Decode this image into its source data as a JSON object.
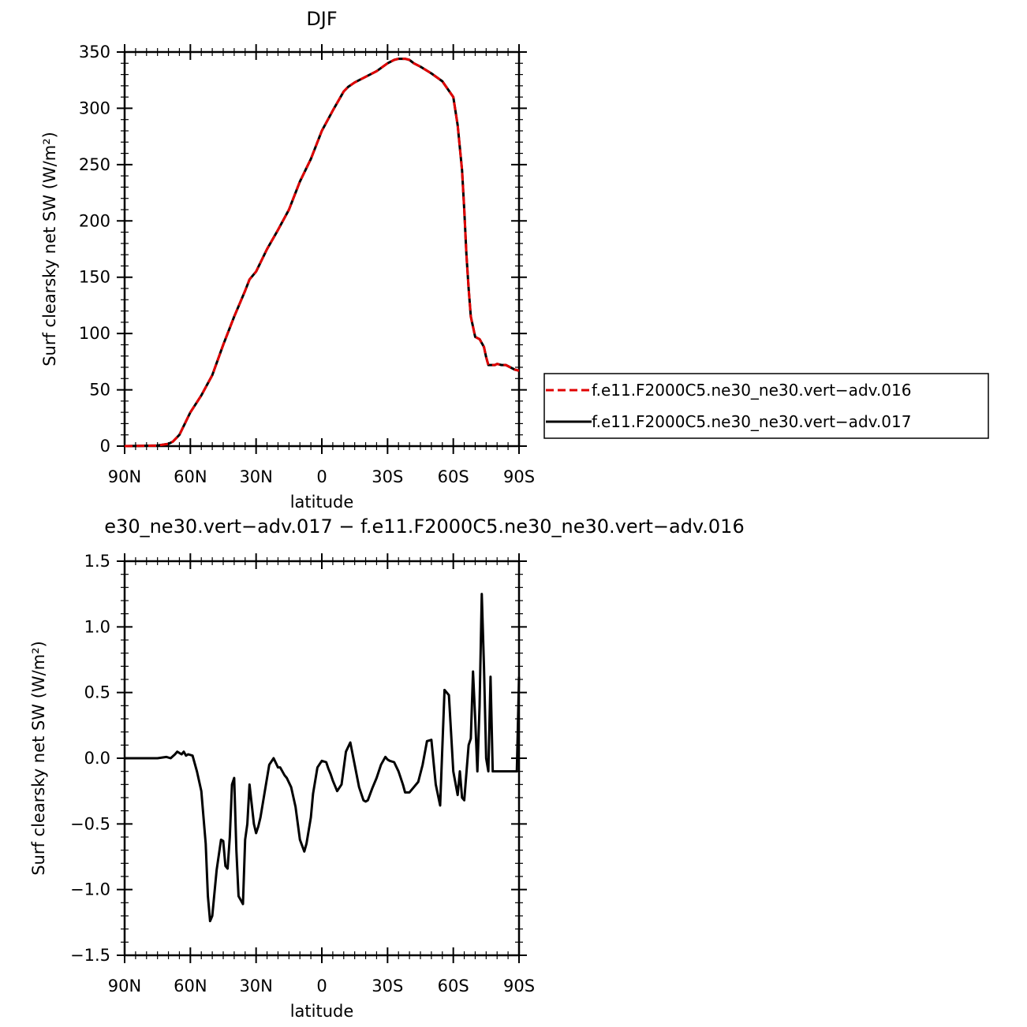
{
  "chart_data": [
    {
      "type": "line",
      "title": "DJF",
      "xlabel": "latitude",
      "ylabel": "Surf clearsky net SW (W/m²)",
      "xlim": [
        -90,
        90
      ],
      "ylim": [
        0,
        350
      ],
      "x_direction": "north-to-south",
      "xticks": [
        {
          "value": -90,
          "label": "90N"
        },
        {
          "value": -60,
          "label": "60N"
        },
        {
          "value": -30,
          "label": "30N"
        },
        {
          "value": 0,
          "label": "0"
        },
        {
          "value": 30,
          "label": "30S"
        },
        {
          "value": 60,
          "label": "60S"
        },
        {
          "value": 90,
          "label": "90S"
        }
      ],
      "yticks": [
        "0",
        "50",
        "100",
        "150",
        "200",
        "250",
        "300",
        "350"
      ],
      "legend_placement": "right",
      "series": [
        {
          "name": "f.e11.F2000C5.ne30_ne30.vert−adv.016",
          "color": "#e00000",
          "dash": "dashed",
          "x": [
            -90,
            -75,
            -70,
            -68,
            -65,
            -62,
            -60,
            -55,
            -50,
            -45,
            -40,
            -35,
            -33,
            -30,
            -25,
            -20,
            -15,
            -10,
            -5,
            0,
            5,
            10,
            12,
            15,
            20,
            25,
            30,
            33,
            35,
            38,
            40,
            42,
            45,
            50,
            55,
            60,
            62,
            64,
            65,
            66,
            67,
            68,
            70,
            72,
            74,
            75,
            76,
            78,
            79,
            80,
            82,
            84,
            86,
            88,
            90
          ],
          "y": [
            0,
            0.5,
            2,
            4,
            10,
            22,
            30,
            45,
            63,
            90,
            115,
            138,
            148,
            155,
            175,
            192,
            210,
            235,
            255,
            280,
            298,
            315,
            319,
            323,
            328,
            333,
            340,
            343,
            344,
            344,
            343,
            340,
            337,
            331,
            324,
            310,
            285,
            245,
            210,
            170,
            140,
            115,
            97,
            95,
            88,
            79,
            72,
            72,
            72,
            73,
            72,
            72,
            70,
            68,
            67
          ]
        },
        {
          "name": "f.e11.F2000C5.ne30_ne30.vert−adv.017",
          "color": "#000000",
          "dash": "solid",
          "x": [
            -90,
            -75,
            -70,
            -68,
            -65,
            -62,
            -60,
            -55,
            -50,
            -45,
            -40,
            -35,
            -33,
            -30,
            -25,
            -20,
            -15,
            -10,
            -5,
            0,
            5,
            10,
            12,
            15,
            20,
            25,
            30,
            33,
            35,
            38,
            40,
            42,
            45,
            50,
            55,
            60,
            62,
            64,
            65,
            66,
            67,
            68,
            70,
            72,
            74,
            75,
            76,
            78,
            79,
            80,
            82,
            84,
            86,
            88,
            90
          ],
          "y": [
            0,
            0.5,
            2,
            4,
            10,
            22,
            30,
            45,
            63,
            90,
            115,
            138,
            148,
            155,
            175,
            192,
            210,
            235,
            255,
            280,
            298,
            315,
            319,
            323,
            328,
            333,
            340,
            343,
            344,
            344,
            343,
            340,
            337,
            331,
            324,
            310,
            285,
            245,
            210,
            170,
            140,
            115,
            97,
            95,
            88,
            79,
            72,
            72,
            72,
            73,
            72,
            72,
            70,
            68,
            67
          ]
        }
      ]
    },
    {
      "type": "line",
      "title": "e30_ne30.vert−adv.017 − f.e11.F2000C5.ne30_ne30.vert−adv.016",
      "xlabel": "latitude",
      "ylabel": "Surf clearsky net SW (W/m²)",
      "xlim": [
        -90,
        90
      ],
      "ylim": [
        -1.5,
        1.5
      ],
      "x_direction": "north-to-south",
      "xticks": [
        {
          "value": -90,
          "label": "90N"
        },
        {
          "value": -60,
          "label": "60N"
        },
        {
          "value": -30,
          "label": "30N"
        },
        {
          "value": 0,
          "label": "0"
        },
        {
          "value": 30,
          "label": "30S"
        },
        {
          "value": 60,
          "label": "60S"
        },
        {
          "value": 90,
          "label": "90S"
        }
      ],
      "yticks": [
        "1.5",
        "1.0",
        "0.5",
        "0.0",
        "−0.5",
        "−1.0",
        "−1.5"
      ],
      "series": [
        {
          "color": "#000000",
          "dash": "solid",
          "x": [
            -90,
            -75,
            -71,
            -69,
            -67,
            -66,
            -64,
            -63,
            -62,
            -61,
            -59,
            -57,
            -55,
            -53,
            -52,
            -51,
            -50,
            -48,
            -46,
            -45,
            -44,
            -43,
            -42,
            -41,
            -40,
            -39,
            -38,
            -36,
            -35,
            -34,
            -33,
            -31,
            -30,
            -29,
            -28,
            -26,
            -24,
            -22,
            -20,
            -19,
            -17,
            -16,
            -14,
            -12,
            -10,
            -8,
            -7,
            -5,
            -4,
            -2,
            0,
            2,
            3,
            4,
            5,
            7,
            9,
            11,
            13,
            15,
            17,
            19,
            20,
            21,
            23,
            25,
            27,
            29,
            30,
            31,
            33,
            35,
            37,
            38,
            40,
            42,
            44,
            46,
            48,
            50,
            52,
            54,
            56,
            58,
            60,
            62,
            63,
            64,
            65,
            67,
            68,
            69,
            70,
            71,
            72,
            73,
            74,
            75,
            76,
            77,
            78,
            79,
            80,
            81,
            82,
            83,
            84,
            85,
            86,
            87,
            88,
            89,
            90
          ],
          "y": [
            0,
            0,
            0.01,
            0,
            0.03,
            0.05,
            0.03,
            0.05,
            0.02,
            0.03,
            0.02,
            -0.1,
            -0.25,
            -0.65,
            -1.05,
            -1.24,
            -1.2,
            -0.85,
            -0.62,
            -0.63,
            -0.82,
            -0.84,
            -0.6,
            -0.2,
            -0.15,
            -0.7,
            -1.05,
            -1.11,
            -0.62,
            -0.5,
            -0.2,
            -0.5,
            -0.57,
            -0.52,
            -0.45,
            -0.25,
            -0.05,
            0,
            -0.07,
            -0.07,
            -0.13,
            -0.15,
            -0.22,
            -0.37,
            -0.62,
            -0.71,
            -0.65,
            -0.45,
            -0.27,
            -0.07,
            -0.02,
            -0.03,
            -0.08,
            -0.12,
            -0.17,
            -0.25,
            -0.2,
            0.05,
            0.12,
            -0.05,
            -0.22,
            -0.32,
            -0.33,
            -0.32,
            -0.23,
            -0.15,
            -0.05,
            0.01,
            -0.01,
            -0.02,
            -0.03,
            -0.1,
            -0.2,
            -0.26,
            -0.26,
            -0.22,
            -0.18,
            -0.05,
            0.13,
            0.14,
            -0.2,
            -0.36,
            0.52,
            0.48,
            -0.1,
            -0.28,
            -0.1,
            -0.3,
            -0.32,
            0.1,
            0.15,
            0.66,
            0.3,
            -0.1,
            0.4,
            1.25,
            0.7,
            0,
            -0.1,
            0.62,
            -0.1,
            -0.1,
            -0.1,
            -0.1,
            -0.1,
            -0.1,
            -0.1,
            -0.1,
            -0.1,
            -0.1,
            -0.1,
            -0.1,
            0.62
          ]
        }
      ]
    }
  ]
}
